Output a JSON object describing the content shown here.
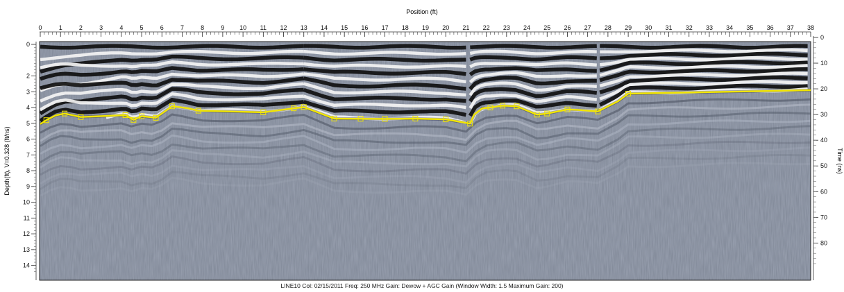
{
  "chart_data": {
    "type": "gpr_radargram",
    "xlabel": "Position (ft)",
    "ylabel_left": "Depth(ft), V=0.328 (ft/ns)",
    "ylabel_right": "Time (ns)",
    "x_ticks": [
      "0",
      "1",
      "2",
      "3",
      "4",
      "5",
      "6",
      "7",
      "8",
      "9",
      "10",
      "11",
      "12",
      "13",
      "14",
      "15",
      "16",
      "17",
      "18",
      "19",
      "20",
      "21",
      "22",
      "23",
      "24",
      "25",
      "26",
      "27",
      "28",
      "29",
      "30",
      "31",
      "32",
      "33",
      "34",
      "35",
      "36",
      "37",
      "38"
    ],
    "depth_ticks": [
      "0",
      "2",
      "3",
      "4",
      "5",
      "6",
      "7",
      "8",
      "9",
      "10",
      "11",
      "12",
      "13",
      "14"
    ],
    "time_ticks": [
      "0",
      "10",
      "20",
      "30",
      "40",
      "50",
      "60",
      "70",
      "80"
    ],
    "xlim": [
      0,
      38
    ],
    "depth_range_ft": [
      0,
      14.5
    ],
    "time_range_ns": [
      0,
      88
    ],
    "interface_line": {
      "color": "#f2e600",
      "marker_color": "#f2e600",
      "x": [
        0,
        0.3,
        0.75,
        1.2,
        2.0,
        4.2,
        4.6,
        5.0,
        5.7,
        6.5,
        6.9,
        7.3,
        7.8,
        11.0,
        12.5,
        13.0,
        14.5,
        17.0,
        18.5,
        20.0,
        21.2,
        21.4,
        21.8,
        22.2,
        22.8,
        23.5,
        24.5,
        25.0,
        26.0,
        26.5,
        27.5,
        28.5,
        29.0,
        38.0
      ],
      "depth_ft": [
        5.05,
        4.8,
        4.5,
        4.38,
        4.6,
        4.48,
        4.78,
        4.55,
        4.65,
        3.92,
        3.98,
        4.05,
        4.2,
        4.3,
        4.05,
        3.97,
        4.7,
        4.72,
        4.7,
        4.75,
        5.02,
        4.45,
        4.05,
        4.0,
        3.88,
        3.92,
        4.45,
        4.38,
        4.12,
        4.15,
        4.25,
        3.6,
        3.12,
        2.9
      ],
      "markers_x": [
        0.3,
        1.2,
        2.0,
        4.2,
        4.6,
        5.0,
        5.7,
        6.5,
        7.8,
        11.0,
        12.5,
        13.0,
        14.5,
        15.8,
        17.0,
        18.5,
        20.0,
        21.2,
        22.2,
        22.8,
        23.5,
        24.5,
        25.0,
        26.0,
        27.5,
        29.0
      ]
    },
    "grid": false
  },
  "footer": {
    "line_name": "LINE10",
    "col_label": "Col:",
    "col_value": "02/15/2011",
    "freq_label": "Freq:",
    "freq_value": "250 MHz",
    "gain_label": "Gain:",
    "gain_value": "Dewow + AGC Gain",
    "window_label": "(Window Width:",
    "window_value": "1.5",
    "max_gain_label": "Maximum Gain:",
    "max_gain_value": "200)"
  }
}
